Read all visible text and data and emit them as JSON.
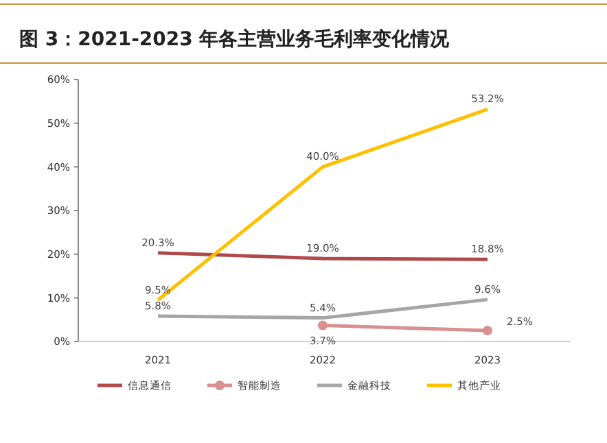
{
  "chart_data": {
    "type": "line",
    "title": "图 3：2021-2023 年各主营业务毛利率变化情况",
    "categories": [
      "2021",
      "2022",
      "2023"
    ],
    "ylim": [
      0,
      60
    ],
    "yticks": [
      {
        "value": 0,
        "label": "0%"
      },
      {
        "value": 10,
        "label": "10%"
      },
      {
        "value": 20,
        "label": "20%"
      },
      {
        "value": 30,
        "label": "30%"
      },
      {
        "value": 40,
        "label": "40%"
      },
      {
        "value": 50,
        "label": "50%"
      },
      {
        "value": 60,
        "label": "60%"
      }
    ],
    "grid": false,
    "legend": "bottom",
    "series": [
      {
        "name": "信息通信",
        "color": "#b04a4a",
        "values": [
          20.3,
          19.0,
          18.8
        ],
        "value_labels": [
          "20.3%",
          "19.0%",
          "18.8%"
        ]
      },
      {
        "name": "智能制造",
        "color": "#d99090",
        "marker": "circle",
        "values": [
          null,
          3.7,
          2.5
        ],
        "value_labels": [
          null,
          "3.7%",
          "2.5%"
        ]
      },
      {
        "name": "金融科技",
        "color": "#a6a6a6",
        "values": [
          5.8,
          5.4,
          9.6
        ],
        "value_labels": [
          "5.8%",
          "5.4%",
          "9.6%"
        ]
      },
      {
        "name": "其他产业",
        "color": "#ffc000",
        "values": [
          9.5,
          40.0,
          53.2
        ],
        "value_labels": [
          "9.5%",
          "40.0%",
          "53.2%"
        ]
      }
    ]
  }
}
